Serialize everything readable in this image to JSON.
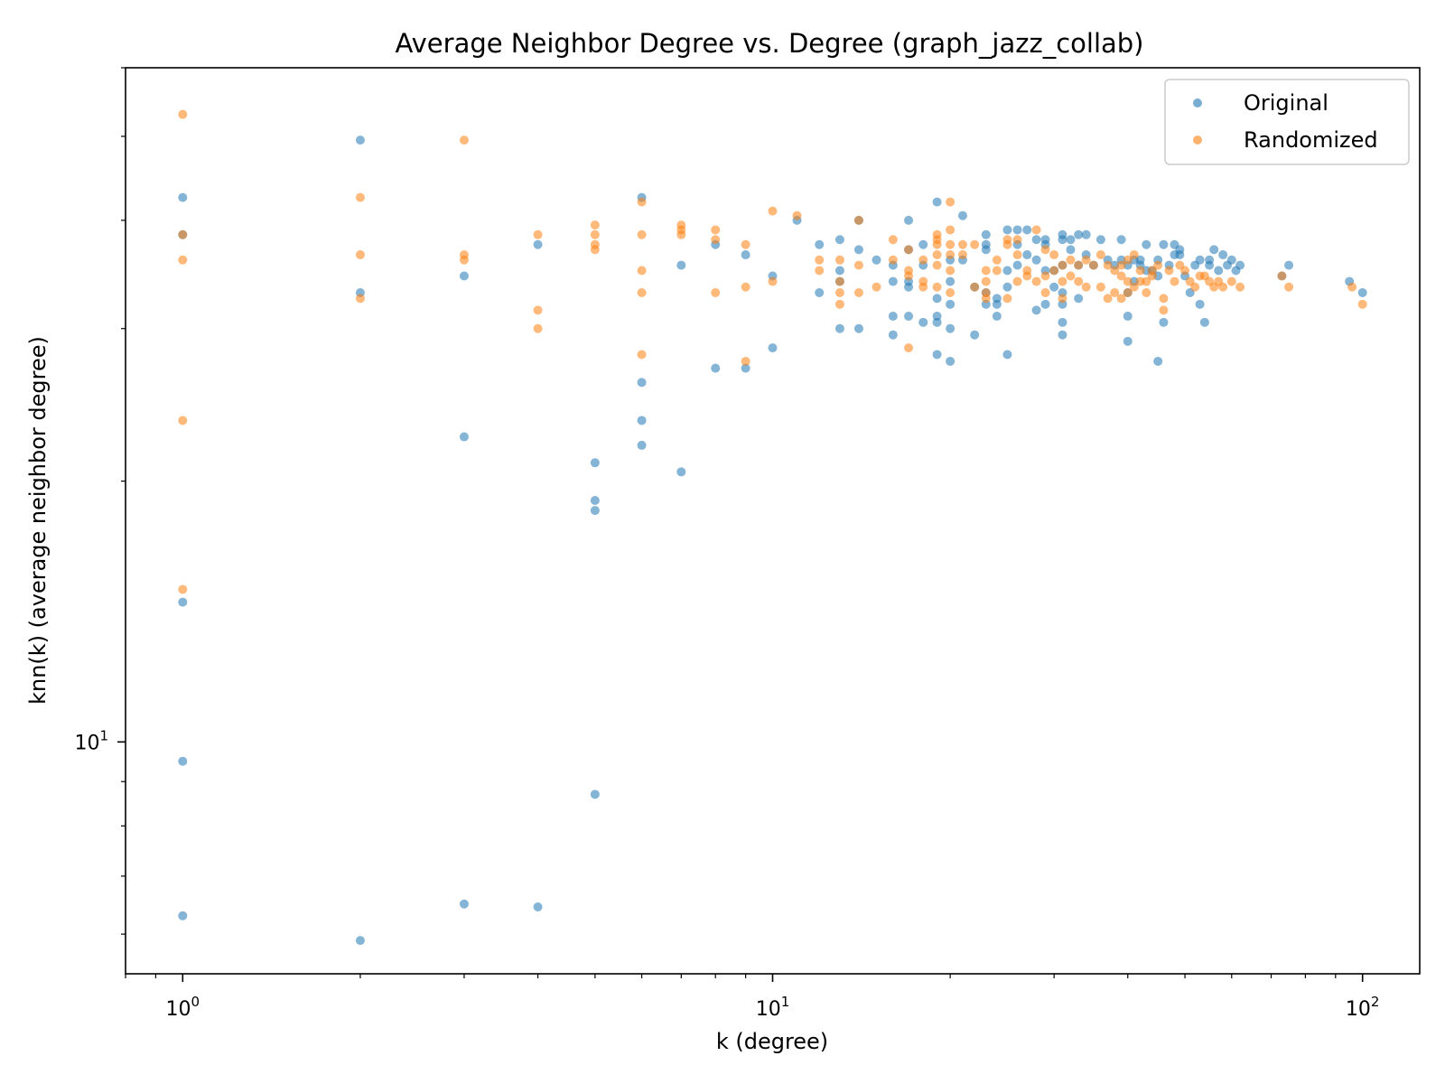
{
  "chart_data": {
    "type": "scatter",
    "title": "Average Neighbor Degree vs. Degree (graph_jazz_collab)",
    "xlabel": "k (degree)",
    "ylabel": "knn(k) (average neighbor degree)",
    "xscale": "log",
    "yscale": "log",
    "xlim": [
      0.8,
      125
    ],
    "ylim": [
      5.4,
      60
    ],
    "x_ticks": [
      {
        "value": 1,
        "base": "10",
        "exp": "0"
      },
      {
        "value": 10,
        "base": "10",
        "exp": "1"
      },
      {
        "value": 100,
        "base": "10",
        "exp": "2"
      }
    ],
    "y_ticks": [
      {
        "value": 10,
        "base": "10",
        "exp": "1"
      }
    ],
    "grid": false,
    "legend_position": "top-right",
    "series": [
      {
        "name": "Original",
        "color": "#1f77b4",
        "points": [
          [
            1,
            42.5
          ],
          [
            1,
            38.5
          ],
          [
            1,
            14.5
          ],
          [
            1,
            9.5
          ],
          [
            1,
            6.3
          ],
          [
            2,
            49.5
          ],
          [
            2,
            33
          ],
          [
            2,
            5.9
          ],
          [
            3,
            34.5
          ],
          [
            3,
            22.5
          ],
          [
            3,
            6.5
          ],
          [
            4,
            37.5
          ],
          [
            4,
            6.45
          ],
          [
            5,
            21
          ],
          [
            5,
            19
          ],
          [
            5,
            18.5
          ],
          [
            5,
            8.7
          ],
          [
            6,
            42.5
          ],
          [
            6,
            26
          ],
          [
            6,
            23.5
          ],
          [
            6,
            22
          ],
          [
            7,
            35.5
          ],
          [
            7,
            20.5
          ],
          [
            8,
            37.5
          ],
          [
            8,
            27
          ],
          [
            9,
            36.5
          ],
          [
            9,
            27
          ],
          [
            10,
            34.5
          ],
          [
            10,
            28.5
          ],
          [
            11,
            40
          ],
          [
            12,
            37.5
          ],
          [
            12,
            33
          ],
          [
            13,
            38
          ],
          [
            13,
            35
          ],
          [
            13,
            30
          ],
          [
            13,
            34
          ],
          [
            14,
            40
          ],
          [
            14,
            37
          ],
          [
            14,
            30
          ],
          [
            15,
            36
          ],
          [
            16,
            35.5
          ],
          [
            16,
            34
          ],
          [
            16,
            31
          ],
          [
            16,
            29.5
          ],
          [
            17,
            40
          ],
          [
            17,
            37
          ],
          [
            17,
            34
          ],
          [
            17,
            33.5
          ],
          [
            17,
            31
          ],
          [
            18,
            37.5
          ],
          [
            18,
            35.5
          ],
          [
            18,
            30.5
          ],
          [
            19,
            42
          ],
          [
            19,
            32.5
          ],
          [
            19,
            31
          ],
          [
            19,
            30.5
          ],
          [
            19,
            28
          ],
          [
            20,
            36
          ],
          [
            20,
            34
          ],
          [
            20,
            32
          ],
          [
            20,
            30
          ],
          [
            20,
            27.5
          ],
          [
            21,
            40.5
          ],
          [
            21,
            36
          ],
          [
            22,
            33.5
          ],
          [
            22,
            29.5
          ],
          [
            23,
            38.5
          ],
          [
            23,
            37.5
          ],
          [
            23,
            37
          ],
          [
            23,
            33
          ],
          [
            23,
            32
          ],
          [
            24,
            32
          ],
          [
            24,
            31
          ],
          [
            24,
            32.5
          ],
          [
            25,
            39
          ],
          [
            25,
            35
          ],
          [
            25,
            33.5
          ],
          [
            25,
            28
          ],
          [
            26,
            39
          ],
          [
            26,
            37.5
          ],
          [
            26,
            35.5
          ],
          [
            27,
            39
          ],
          [
            27,
            36.5
          ],
          [
            28,
            38
          ],
          [
            28,
            36
          ],
          [
            28,
            31.5
          ],
          [
            29,
            38
          ],
          [
            29,
            37.5
          ],
          [
            29,
            35
          ],
          [
            29,
            32
          ],
          [
            30,
            35
          ],
          [
            30,
            33.5
          ],
          [
            31,
            38
          ],
          [
            31,
            38.5
          ],
          [
            31,
            35.5
          ],
          [
            31,
            33
          ],
          [
            31,
            32
          ],
          [
            31,
            30.5
          ],
          [
            31,
            29.5
          ],
          [
            32,
            38
          ],
          [
            32,
            37
          ],
          [
            33,
            38.5
          ],
          [
            33,
            35.5
          ],
          [
            33,
            32.5
          ],
          [
            34,
            36.5
          ],
          [
            34,
            38.5
          ],
          [
            35,
            35.5
          ],
          [
            36,
            38
          ],
          [
            37,
            36
          ],
          [
            38,
            35.5
          ],
          [
            39,
            38
          ],
          [
            39,
            36
          ],
          [
            40,
            35.5
          ],
          [
            40,
            33
          ],
          [
            40,
            31
          ],
          [
            40,
            29
          ],
          [
            41,
            36
          ],
          [
            41,
            34
          ],
          [
            42,
            36
          ],
          [
            42,
            35.5
          ],
          [
            43,
            37.5
          ],
          [
            43,
            35
          ],
          [
            44,
            35
          ],
          [
            45,
            36
          ],
          [
            45,
            34.5
          ],
          [
            45,
            27.5
          ],
          [
            46,
            37.5
          ],
          [
            46,
            30.5
          ],
          [
            47,
            35.5
          ],
          [
            48,
            36.5
          ],
          [
            48,
            37.5
          ],
          [
            49,
            37
          ],
          [
            49,
            36.5
          ],
          [
            50,
            34.5
          ],
          [
            51,
            33
          ],
          [
            52,
            35.5
          ],
          [
            53,
            36
          ],
          [
            53,
            32
          ],
          [
            54,
            30.5
          ],
          [
            55,
            36
          ],
          [
            55,
            35.5
          ],
          [
            56,
            37
          ],
          [
            57,
            35
          ],
          [
            58,
            36.5
          ],
          [
            59,
            35.5
          ],
          [
            60,
            36
          ],
          [
            61,
            35
          ],
          [
            62,
            35.5
          ],
          [
            73,
            34.5
          ],
          [
            75,
            35.5
          ],
          [
            95,
            34
          ],
          [
            100,
            33
          ]
        ]
      },
      {
        "name": "Randomized",
        "color": "#ff7f0e",
        "points": [
          [
            1,
            53
          ],
          [
            1,
            38.5
          ],
          [
            1,
            36
          ],
          [
            1,
            23.5
          ],
          [
            1,
            15
          ],
          [
            2,
            42.5
          ],
          [
            2,
            36.5
          ],
          [
            2,
            32.5
          ],
          [
            3,
            49.5
          ],
          [
            3,
            36.5
          ],
          [
            3,
            36
          ],
          [
            4,
            38.5
          ],
          [
            4,
            31.5
          ],
          [
            4,
            30
          ],
          [
            5,
            39.5
          ],
          [
            5,
            38.5
          ],
          [
            5,
            37.5
          ],
          [
            5,
            37
          ],
          [
            6,
            42
          ],
          [
            6,
            38.5
          ],
          [
            6,
            35
          ],
          [
            6,
            33
          ],
          [
            6,
            28
          ],
          [
            7,
            39.5
          ],
          [
            7,
            38.5
          ],
          [
            7,
            39
          ],
          [
            8,
            39
          ],
          [
            8,
            38
          ],
          [
            8,
            33
          ],
          [
            9,
            37.5
          ],
          [
            9,
            33.5
          ],
          [
            9,
            27.5
          ],
          [
            10,
            41
          ],
          [
            10,
            34
          ],
          [
            11,
            40.5
          ],
          [
            12,
            36
          ],
          [
            12,
            35
          ],
          [
            13,
            36
          ],
          [
            13,
            34
          ],
          [
            13,
            33
          ],
          [
            13,
            32
          ],
          [
            14,
            40
          ],
          [
            14,
            35.5
          ],
          [
            14,
            33
          ],
          [
            15,
            33.5
          ],
          [
            16,
            38
          ],
          [
            16,
            36
          ],
          [
            17,
            37
          ],
          [
            17,
            34.5
          ],
          [
            17,
            35
          ],
          [
            17,
            28.5
          ],
          [
            18,
            36
          ],
          [
            18,
            34
          ],
          [
            18,
            33.5
          ],
          [
            19,
            38.5
          ],
          [
            19,
            38
          ],
          [
            19,
            37.5
          ],
          [
            19,
            36.5
          ],
          [
            19,
            35.5
          ],
          [
            19,
            33.5
          ],
          [
            20,
            39
          ],
          [
            20,
            37.5
          ],
          [
            20,
            36.5
          ],
          [
            20,
            35
          ],
          [
            20,
            33
          ],
          [
            20,
            42
          ],
          [
            21,
            36.5
          ],
          [
            21,
            37.5
          ],
          [
            22,
            37.5
          ],
          [
            22,
            33.5
          ],
          [
            23,
            35
          ],
          [
            23,
            34
          ],
          [
            23,
            33
          ],
          [
            23,
            32.5
          ],
          [
            24,
            36
          ],
          [
            24,
            35
          ],
          [
            25,
            38
          ],
          [
            25,
            37.5
          ],
          [
            25,
            32.5
          ],
          [
            26,
            38
          ],
          [
            26,
            36.5
          ],
          [
            26,
            34
          ],
          [
            27,
            35
          ],
          [
            27,
            34.5
          ],
          [
            28,
            39
          ],
          [
            28,
            34
          ],
          [
            29,
            37
          ],
          [
            29,
            33
          ],
          [
            29,
            34.5
          ],
          [
            30,
            36.5
          ],
          [
            30,
            35
          ],
          [
            31,
            35.5
          ],
          [
            31,
            34
          ],
          [
            31,
            32.5
          ],
          [
            32,
            36
          ],
          [
            32,
            34.5
          ],
          [
            33,
            35.5
          ],
          [
            33,
            34
          ],
          [
            34,
            36
          ],
          [
            34,
            33.5
          ],
          [
            35,
            35.5
          ],
          [
            36,
            36.5
          ],
          [
            36,
            33.5
          ],
          [
            37,
            35.5
          ],
          [
            37,
            32.5
          ],
          [
            38,
            35
          ],
          [
            38,
            33
          ],
          [
            39,
            35.5
          ],
          [
            39,
            34.5
          ],
          [
            39,
            32.5
          ],
          [
            40,
            36
          ],
          [
            40,
            34
          ],
          [
            40,
            33
          ],
          [
            41,
            36.5
          ],
          [
            41,
            33.5
          ],
          [
            42,
            35
          ],
          [
            42,
            34
          ],
          [
            43,
            34
          ],
          [
            43,
            33
          ],
          [
            44,
            34.5
          ],
          [
            44,
            35
          ],
          [
            45,
            35.5
          ],
          [
            46,
            32.5
          ],
          [
            46,
            31.5
          ],
          [
            47,
            35
          ],
          [
            48,
            34
          ],
          [
            49,
            35.5
          ],
          [
            50,
            35
          ],
          [
            51,
            34
          ],
          [
            52,
            33.5
          ],
          [
            53,
            34.5
          ],
          [
            54,
            34.5
          ],
          [
            55,
            34
          ],
          [
            56,
            33.5
          ],
          [
            57,
            34
          ],
          [
            58,
            33.5
          ],
          [
            60,
            34
          ],
          [
            62,
            33.5
          ],
          [
            73,
            34.5
          ],
          [
            75,
            33.5
          ],
          [
            96,
            33.5
          ],
          [
            100,
            32
          ]
        ]
      }
    ]
  }
}
